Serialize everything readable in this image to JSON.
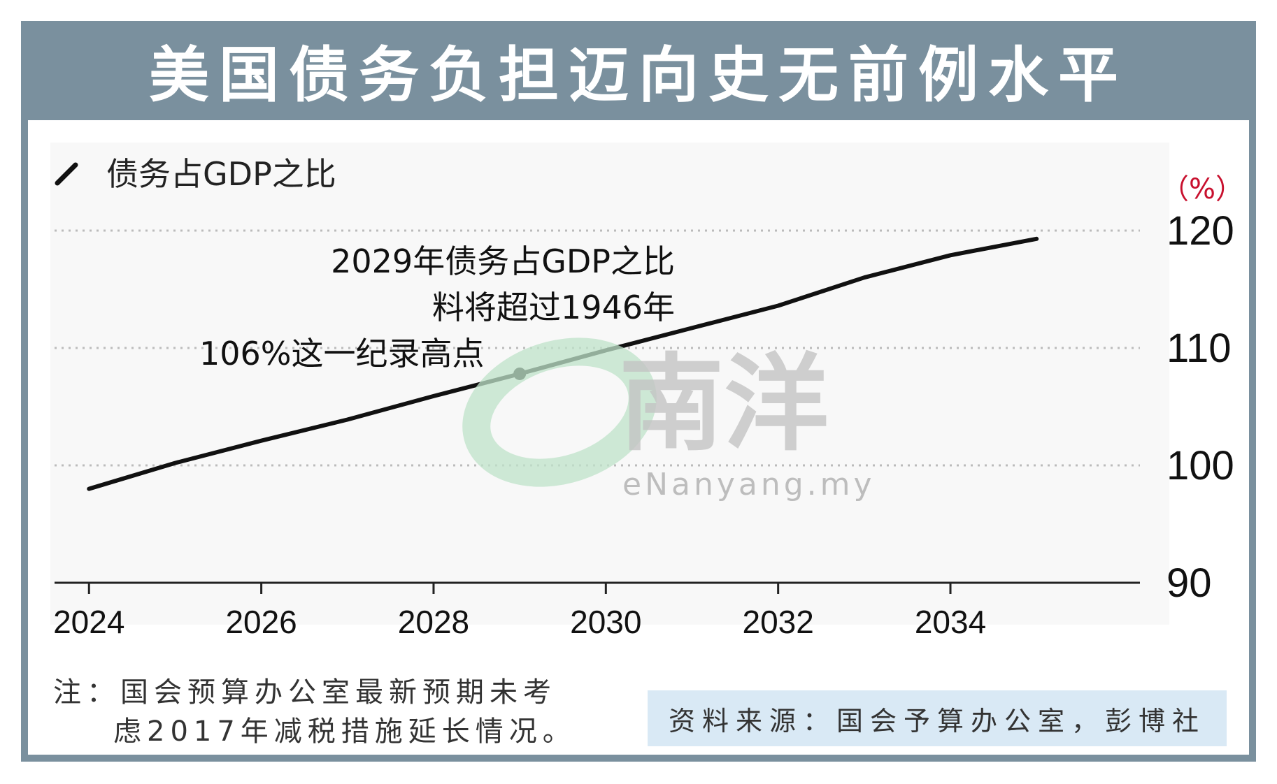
{
  "title": "美国债务负担迈向史无前例水平",
  "legend_label": "债务占GDP之比",
  "unit_label": "（%）",
  "annotation_lines": [
    "2029年债务占GDP之比",
    "料将超过1946年",
    "106%这一纪录高点"
  ],
  "note_lines": [
    "注：国会预算办公室最新预期未考",
    "虑2017年减税措施延长情况。"
  ],
  "source": "资料来源：国会予算办公室，彭博社",
  "watermark": {
    "cjk": "南洋",
    "latin": "eNanyang.my"
  },
  "colors": {
    "frame": "#7a909e",
    "line": "#111111",
    "unit": "#c8102e",
    "source_bg": "#d9e9f5"
  },
  "chart_data": {
    "type": "line",
    "title": "美国债务负担迈向史无前例水平",
    "xlabel": "",
    "ylabel": "（%）",
    "x_ticks": [
      2024,
      2026,
      2028,
      2030,
      2032,
      2034
    ],
    "x_tick_labels": [
      "2024",
      "2026",
      "2028",
      "2030",
      "2032",
      "2034"
    ],
    "y_ticks": [
      90,
      100,
      110,
      120
    ],
    "y_tick_labels": [
      "90",
      "100",
      "110",
      "120"
    ],
    "xlim": [
      2023.6,
      2036.2
    ],
    "ylim": [
      90,
      120
    ],
    "grid": "horizontal dotted",
    "series": [
      {
        "name": "债务占GDP之比",
        "x": [
          2024,
          2025,
          2026,
          2027,
          2028,
          2029,
          2030,
          2031,
          2032,
          2033,
          2034,
          2035
        ],
        "values": [
          98.0,
          100.2,
          102.1,
          103.9,
          105.9,
          107.8,
          109.8,
          111.7,
          113.6,
          116.0,
          117.9,
          119.3
        ]
      }
    ],
    "highlight_point": {
      "x": 2029,
      "y": 107.8
    }
  }
}
